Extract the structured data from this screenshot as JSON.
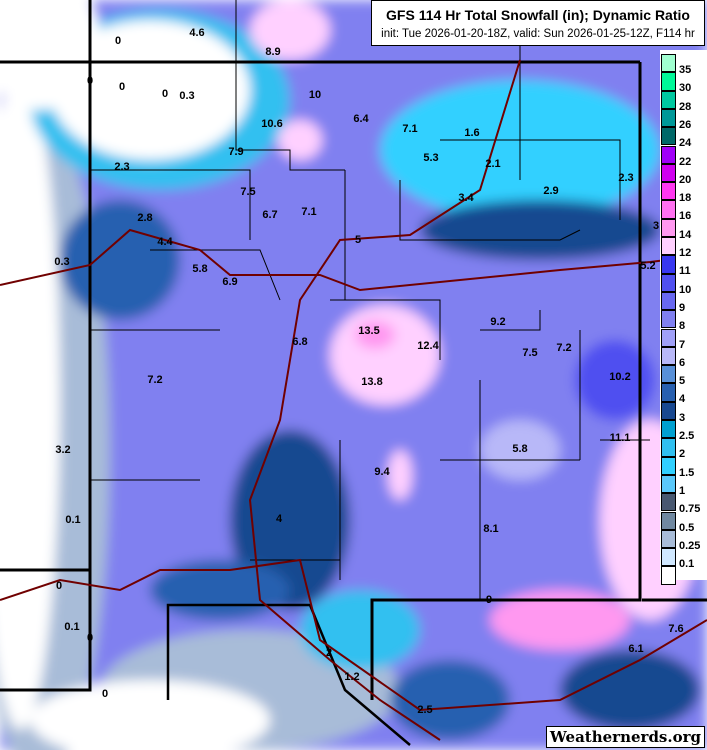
{
  "header": {
    "title": "GFS 114 Hr Total Snowfall (in); Dynamic Ratio",
    "subtitle": "init: Tue 2026-01-20-18Z, valid: Sun 2026-01-25-12Z, F114 hr"
  },
  "legend": {
    "labels": [
      "35",
      "30",
      "28",
      "26",
      "24",
      "22",
      "20",
      "18",
      "16",
      "14",
      "12",
      "11",
      "10",
      "9",
      "8",
      "7",
      "6",
      "5",
      "4",
      "3",
      "2.5",
      "2",
      "1.5",
      "1",
      "0.75",
      "0.5",
      "0.25",
      "0.1"
    ],
    "colors": [
      "#a0ffd0",
      "#00f898",
      "#00c8a0",
      "#009898",
      "#006868",
      "#a000f8",
      "#d000f0",
      "#ff38f0",
      "#ff70f0",
      "#ff98f0",
      "#ffd0ff",
      "#3838f0",
      "#5050f0",
      "#6868f0",
      "#8080f0",
      "#a0a0f8",
      "#b8b8f8",
      "#5890d8",
      "#2860b0",
      "#184890",
      "#00a0d0",
      "#30c0f0",
      "#30d0ff",
      "#5ac8fa",
      "#485870",
      "#7088a0",
      "#a8bcd8",
      "#d0e8ff",
      "#ffffff"
    ]
  },
  "map_values": [
    "0",
    "4.6",
    "8.9",
    "0",
    "0",
    "0",
    "0.3",
    "10",
    "10.6",
    "6.4",
    "7.1",
    "1.6",
    "7.9",
    "5.3",
    "2.1",
    "2.3",
    "2.3",
    "7.5",
    "2.9",
    "3.4",
    "6.7",
    "7.1",
    "2.8",
    "5",
    "4.4",
    "3",
    "0.3",
    "5.8",
    "6.9",
    "5.2",
    "9.2",
    "13.5",
    "12.4",
    "6.8",
    "7.5",
    "7.2",
    "7.2",
    "10.2",
    "13.8",
    "11.1",
    "3.2",
    "5.8",
    "9.4",
    "4",
    "0.1",
    "8.1",
    "9",
    "0",
    "0.1",
    "0",
    "2",
    "7.6",
    "6.1",
    "1.2",
    "0",
    "2.5"
  ],
  "watermark": "Weathernerds.org"
}
